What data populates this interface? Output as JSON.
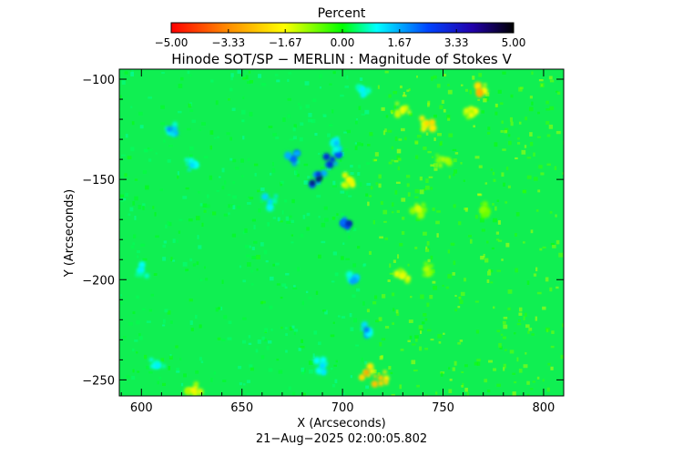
{
  "chart_data": {
    "type": "heatmap",
    "title": "Hinode SOT/SP − MERLIN : Magnitude of Stokes V",
    "xlabel": "X (Arcseconds)",
    "ylabel": "Y (Arcseconds)",
    "timestamp": "21−Aug−2025 02:00:05.802",
    "xlim": [
      589,
      810
    ],
    "ylim": [
      -258,
      -95
    ],
    "x_ticks": [
      {
        "value": 600,
        "label": "600"
      },
      {
        "value": 650,
        "label": "650"
      },
      {
        "value": 700,
        "label": "700"
      },
      {
        "value": 750,
        "label": "750"
      },
      {
        "value": 800,
        "label": "800"
      }
    ],
    "y_ticks": [
      {
        "value": -100,
        "label": "−100"
      },
      {
        "value": -150,
        "label": "−150"
      },
      {
        "value": -200,
        "label": "−200"
      },
      {
        "value": -250,
        "label": "−250"
      }
    ],
    "colorbar": {
      "title": "Percent",
      "range": [
        -5,
        5
      ],
      "ticks": [
        {
          "value": -5.0,
          "label": "−5.00"
        },
        {
          "value": -3.33,
          "label": "−3.33"
        },
        {
          "value": -1.67,
          "label": "−1.67"
        },
        {
          "value": 0.0,
          "label": "0.00"
        },
        {
          "value": 1.67,
          "label": "1.67"
        },
        {
          "value": 3.33,
          "label": "3.33"
        },
        {
          "value": 5.0,
          "label": "5.00"
        }
      ],
      "colors": [
        "#ff0000",
        "#ff8800",
        "#ffff00",
        "#00ff00",
        "#00ffff",
        "#0000ff",
        "#000000"
      ]
    },
    "background_value": 0.45,
    "features": [
      {
        "x": 688,
        "y": -150,
        "value": 4.2,
        "type": "blue-patch"
      },
      {
        "x": 695,
        "y": -140,
        "value": 3.5,
        "type": "blue-patch"
      },
      {
        "x": 703,
        "y": -172,
        "value": 3.8,
        "type": "blue-patch"
      },
      {
        "x": 697,
        "y": -132,
        "value": 2.2,
        "type": "blue-patch"
      },
      {
        "x": 664,
        "y": -161,
        "value": 2.0,
        "type": "cyan-patch"
      },
      {
        "x": 676,
        "y": -140,
        "value": 3.0,
        "type": "blue-patch"
      },
      {
        "x": 706,
        "y": -200,
        "value": 2.5,
        "type": "cyan-patch"
      },
      {
        "x": 712,
        "y": -225,
        "value": 2.8,
        "type": "cyan-patch"
      },
      {
        "x": 690,
        "y": -243,
        "value": 2.0,
        "type": "cyan-patch"
      },
      {
        "x": 614,
        "y": -125,
        "value": 2.6,
        "type": "cyan-patch"
      },
      {
        "x": 625,
        "y": -143,
        "value": 2.0,
        "type": "cyan-patch"
      },
      {
        "x": 600,
        "y": -195,
        "value": 1.8,
        "type": "cyan-patch"
      },
      {
        "x": 608,
        "y": -243,
        "value": 1.8,
        "type": "cyan-patch"
      },
      {
        "x": 710,
        "y": -105,
        "value": 1.8,
        "type": "cyan-patch"
      },
      {
        "x": 730,
        "y": -115,
        "value": -1.6,
        "type": "yellow-patch"
      },
      {
        "x": 742,
        "y": -122,
        "value": -2.2,
        "type": "yellow-patch"
      },
      {
        "x": 768,
        "y": -106,
        "value": -2.8,
        "type": "yellow-patch"
      },
      {
        "x": 764,
        "y": -118,
        "value": -1.6,
        "type": "yellow-patch"
      },
      {
        "x": 738,
        "y": -165,
        "value": -1.4,
        "type": "yellow-patch"
      },
      {
        "x": 750,
        "y": -140,
        "value": -1.2,
        "type": "yellow-patch"
      },
      {
        "x": 730,
        "y": -198,
        "value": -1.5,
        "type": "yellow-patch"
      },
      {
        "x": 742,
        "y": -195,
        "value": -1.2,
        "type": "yellow-patch"
      },
      {
        "x": 712,
        "y": -246,
        "value": -2.8,
        "type": "yellow-patch"
      },
      {
        "x": 719,
        "y": -249,
        "value": -2.5,
        "type": "yellow-patch"
      },
      {
        "x": 703,
        "y": -150,
        "value": -1.8,
        "type": "yellow-patch"
      },
      {
        "x": 626,
        "y": -255,
        "value": -1.8,
        "type": "yellow-patch"
      },
      {
        "x": 770,
        "y": -165,
        "value": -0.9,
        "type": "yellow-patch"
      }
    ]
  }
}
